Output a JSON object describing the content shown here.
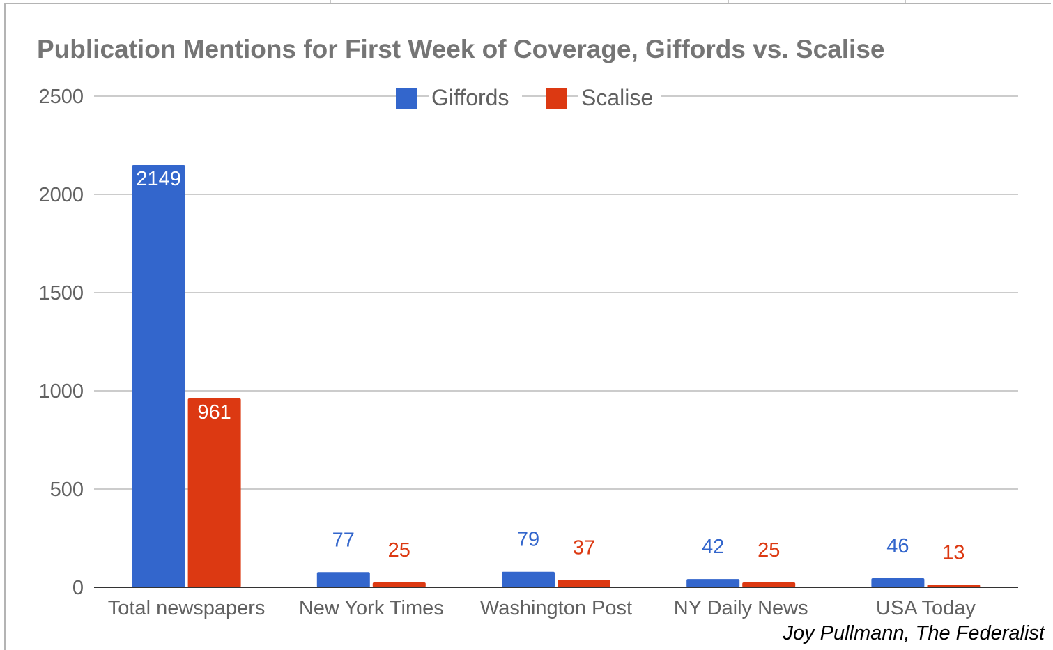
{
  "chart_data": {
    "type": "bar",
    "title": "Publication Mentions for First Week of Coverage, Giffords vs. Scalise",
    "xlabel": "",
    "ylabel": "",
    "ylim": [
      0,
      2500
    ],
    "yticks": [
      0,
      500,
      1000,
      1500,
      2000,
      2500
    ],
    "yticks_labels": [
      "0",
      "500",
      "1000",
      "1500",
      "2000",
      "2500"
    ],
    "grid": true,
    "legend_position": "top-center",
    "categories": [
      "Total newspapers",
      "New York Times",
      "Washington Post",
      "NY Daily News",
      "USA Today"
    ],
    "series": [
      {
        "name": "Giffords",
        "color": "#3366cc",
        "values": [
          2149,
          77,
          79,
          42,
          46
        ],
        "labels": [
          "2149",
          "77",
          "79",
          "42",
          "46"
        ]
      },
      {
        "name": "Scalise",
        "color": "#dc3912",
        "values": [
          961,
          25,
          37,
          25,
          13
        ],
        "labels": [
          "961",
          "25",
          "37",
          "25",
          "13"
        ]
      }
    ]
  },
  "credit": "Joy Pullmann, The Federalist"
}
